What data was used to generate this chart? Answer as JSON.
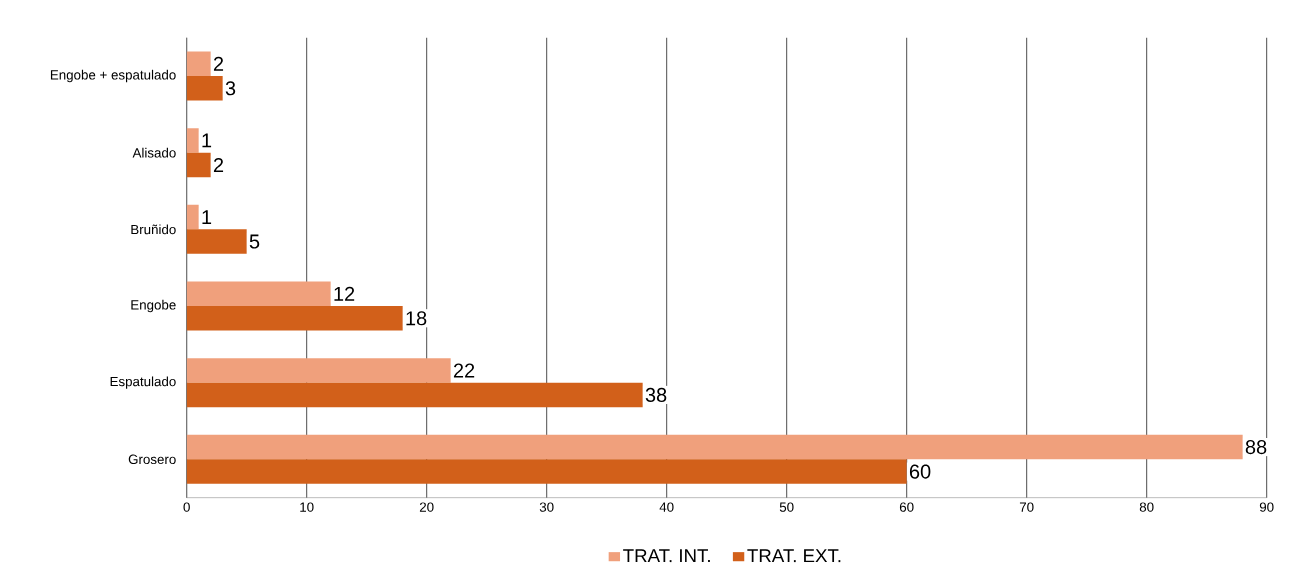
{
  "chart_data": {
    "type": "bar",
    "orientation": "horizontal",
    "categories": [
      "Engobe + espatulado",
      "Alisado",
      "Bruñido",
      "Engobe",
      "Espatulado",
      "Grosero"
    ],
    "series": [
      {
        "name": "TRAT. INT.",
        "color": "#f0a07c",
        "values": [
          2,
          1,
          1,
          12,
          22,
          88
        ]
      },
      {
        "name": "TRAT. EXT.",
        "color": "#d2601a",
        "values": [
          3,
          2,
          5,
          18,
          38,
          60
        ]
      }
    ],
    "xlim": [
      0,
      90
    ],
    "xticks": [
      0,
      10,
      20,
      30,
      40,
      50,
      60,
      70,
      80,
      90
    ],
    "grid": "x",
    "legend": "bottom",
    "data_labels": true
  }
}
